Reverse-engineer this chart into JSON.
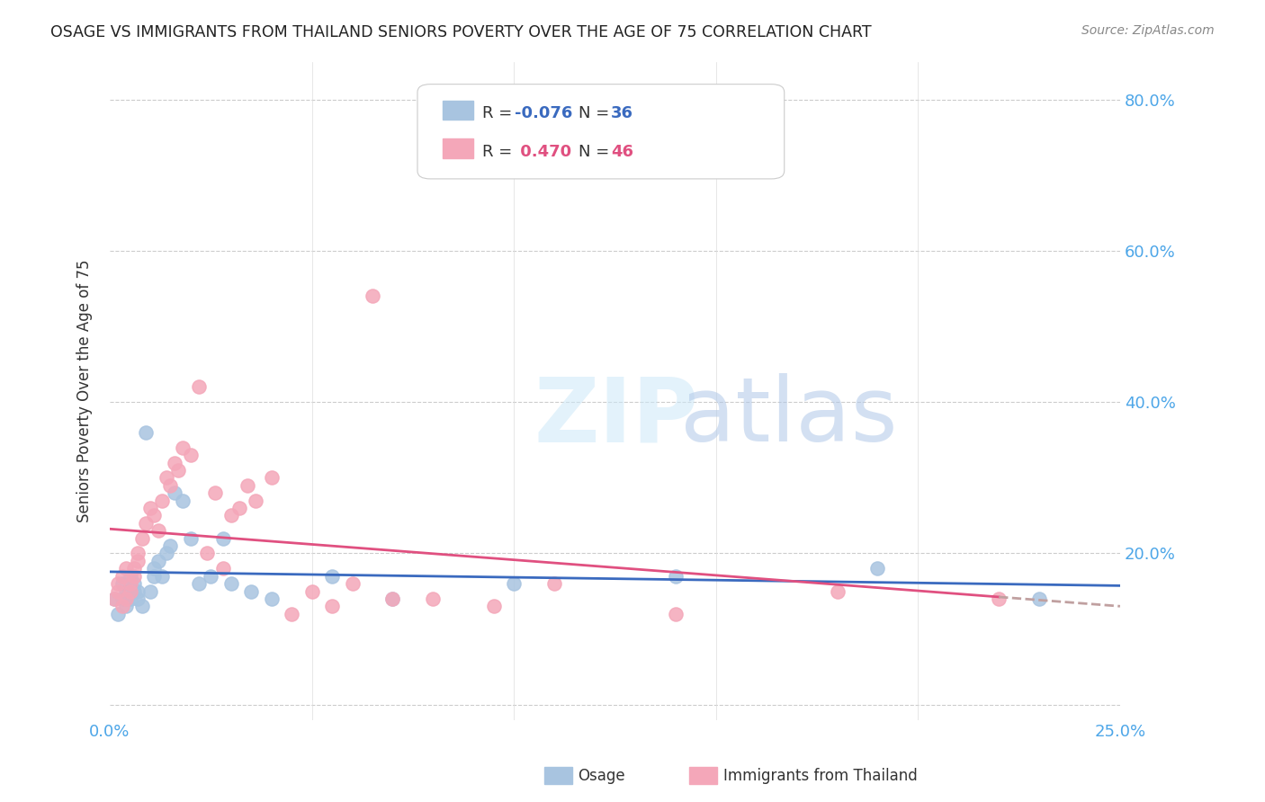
{
  "title": "OSAGE VS IMMIGRANTS FROM THAILAND SENIORS POVERTY OVER THE AGE OF 75 CORRELATION CHART",
  "source": "Source: ZipAtlas.com",
  "ylabel": "Seniors Poverty Over the Age of 75",
  "xlim": [
    0.0,
    0.25
  ],
  "ylim": [
    -0.02,
    0.85
  ],
  "yticks": [
    0.0,
    0.2,
    0.4,
    0.6,
    0.8
  ],
  "ytick_labels": [
    "",
    "20.0%",
    "40.0%",
    "60.0%",
    "80.0%"
  ],
  "background_color": "#ffffff",
  "osage_color": "#a8c4e0",
  "thailand_color": "#f4a7b9",
  "osage_line_color": "#3a6abf",
  "thailand_line_color": "#e05080",
  "trend_extend_color": "#c0a0a0",
  "osage_x": [
    0.001,
    0.002,
    0.003,
    0.003,
    0.004,
    0.004,
    0.005,
    0.005,
    0.006,
    0.006,
    0.007,
    0.007,
    0.008,
    0.009,
    0.01,
    0.011,
    0.011,
    0.012,
    0.013,
    0.014,
    0.015,
    0.016,
    0.018,
    0.02,
    0.022,
    0.025,
    0.028,
    0.03,
    0.035,
    0.04,
    0.055,
    0.07,
    0.1,
    0.14,
    0.19,
    0.23
  ],
  "osage_y": [
    0.14,
    0.12,
    0.16,
    0.14,
    0.15,
    0.13,
    0.17,
    0.14,
    0.15,
    0.16,
    0.15,
    0.14,
    0.13,
    0.36,
    0.15,
    0.17,
    0.18,
    0.19,
    0.17,
    0.2,
    0.21,
    0.28,
    0.27,
    0.22,
    0.16,
    0.17,
    0.22,
    0.16,
    0.15,
    0.14,
    0.17,
    0.14,
    0.16,
    0.17,
    0.18,
    0.14
  ],
  "thailand_x": [
    0.001,
    0.002,
    0.002,
    0.003,
    0.003,
    0.004,
    0.004,
    0.005,
    0.005,
    0.006,
    0.006,
    0.007,
    0.007,
    0.008,
    0.009,
    0.01,
    0.011,
    0.012,
    0.013,
    0.014,
    0.015,
    0.016,
    0.017,
    0.018,
    0.02,
    0.022,
    0.024,
    0.026,
    0.028,
    0.03,
    0.032,
    0.034,
    0.036,
    0.04,
    0.045,
    0.05,
    0.055,
    0.06,
    0.065,
    0.07,
    0.08,
    0.095,
    0.11,
    0.14,
    0.18,
    0.22
  ],
  "thailand_y": [
    0.14,
    0.15,
    0.16,
    0.13,
    0.17,
    0.14,
    0.18,
    0.16,
    0.15,
    0.17,
    0.18,
    0.19,
    0.2,
    0.22,
    0.24,
    0.26,
    0.25,
    0.23,
    0.27,
    0.3,
    0.29,
    0.32,
    0.31,
    0.34,
    0.33,
    0.42,
    0.2,
    0.28,
    0.18,
    0.25,
    0.26,
    0.29,
    0.27,
    0.3,
    0.12,
    0.15,
    0.13,
    0.16,
    0.54,
    0.14,
    0.14,
    0.13,
    0.16,
    0.12,
    0.15,
    0.14
  ]
}
